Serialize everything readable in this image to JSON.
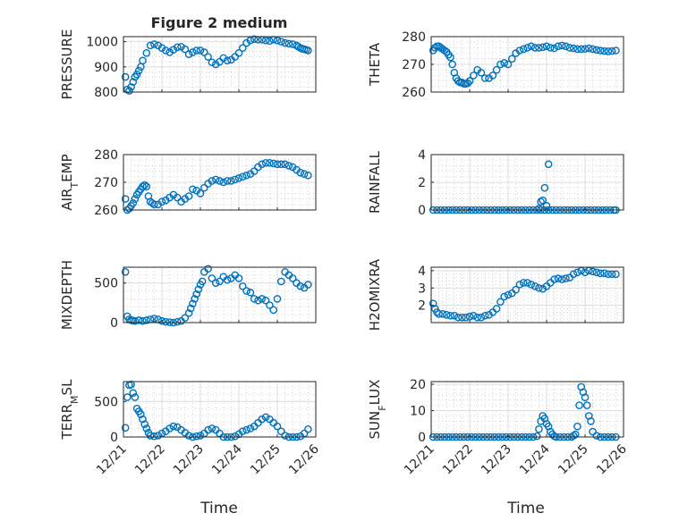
{
  "figure": {
    "title": "Figure 2 medium",
    "marker_color": "#0072BD",
    "x_ticks": [
      "12/21",
      "12/22",
      "12/23",
      "12/24",
      "12/25",
      "12/26"
    ],
    "x_label": "Time"
  },
  "chart_data": [
    {
      "type": "scatter",
      "ylabel": "PRESSURE",
      "ylim": [
        800,
        1020
      ],
      "yticks": [
        800,
        900,
        1000
      ],
      "xlim": [
        0,
        5
      ],
      "grid": true,
      "x": [
        0.05,
        0.1,
        0.15,
        0.2,
        0.25,
        0.3,
        0.35,
        0.4,
        0.45,
        0.5,
        0.6,
        0.7,
        0.8,
        0.9,
        1.0,
        1.1,
        1.2,
        1.3,
        1.4,
        1.5,
        1.6,
        1.7,
        1.8,
        1.9,
        2.0,
        2.1,
        2.2,
        2.3,
        2.4,
        2.5,
        2.6,
        2.7,
        2.8,
        2.9,
        3.0,
        3.1,
        3.2,
        3.3,
        3.4,
        3.5,
        3.6,
        3.7,
        3.8,
        3.9,
        4.0,
        4.1,
        4.2,
        4.3,
        4.4,
        4.5,
        4.55,
        4.6,
        4.65,
        4.7,
        4.75,
        4.8
      ],
      "y": [
        860,
        810,
        805,
        820,
        840,
        860,
        870,
        885,
        900,
        925,
        955,
        985,
        990,
        985,
        975,
        965,
        958,
        968,
        978,
        980,
        970,
        950,
        958,
        965,
        965,
        958,
        940,
        918,
        910,
        920,
        935,
        925,
        928,
        940,
        955,
        975,
        995,
        1005,
        1010,
        1008,
        1008,
        1005,
        1003,
        1008,
        1005,
        1000,
        995,
        992,
        990,
        985,
        980,
        975,
        972,
        970,
        968,
        965
      ]
    },
    {
      "type": "scatter",
      "ylabel": "THETA",
      "ylim": [
        260,
        280
      ],
      "yticks": [
        260,
        270,
        280
      ],
      "xlim": [
        0,
        5
      ],
      "grid": true,
      "x": [
        0.05,
        0.1,
        0.15,
        0.2,
        0.25,
        0.3,
        0.35,
        0.4,
        0.45,
        0.5,
        0.55,
        0.6,
        0.65,
        0.7,
        0.75,
        0.8,
        0.85,
        0.9,
        0.95,
        1.0,
        1.1,
        1.2,
        1.3,
        1.4,
        1.5,
        1.6,
        1.7,
        1.8,
        1.9,
        2.0,
        2.1,
        2.2,
        2.3,
        2.4,
        2.5,
        2.6,
        2.7,
        2.8,
        2.9,
        3.0,
        3.1,
        3.2,
        3.3,
        3.4,
        3.5,
        3.6,
        3.7,
        3.8,
        3.9,
        4.0,
        4.1,
        4.2,
        4.3,
        4.4,
        4.5,
        4.6,
        4.7,
        4.8
      ],
      "y": [
        275,
        276,
        276.5,
        276.5,
        276,
        275.5,
        275,
        274.5,
        273.5,
        272.5,
        270,
        267,
        265,
        264,
        263.5,
        263.5,
        263,
        263,
        263.2,
        264,
        266,
        268,
        267,
        265,
        265,
        266,
        268,
        270,
        270.5,
        270,
        272,
        274,
        275,
        275.5,
        276,
        276.5,
        276,
        276,
        276.2,
        276.5,
        276,
        275.8,
        276.5,
        276.8,
        276.5,
        276,
        275.8,
        275.5,
        275.5,
        275.6,
        275.8,
        275.5,
        275.2,
        275,
        274.8,
        274.7,
        274.8,
        275
      ]
    },
    {
      "type": "scatter",
      "ylabel": "AIR_T_EMP",
      "ylim": [
        260,
        280
      ],
      "yticks": [
        260,
        270,
        280
      ],
      "xlim": [
        0,
        5
      ],
      "grid": true,
      "x": [
        0.05,
        0.1,
        0.15,
        0.2,
        0.25,
        0.3,
        0.35,
        0.4,
        0.45,
        0.5,
        0.55,
        0.6,
        0.65,
        0.7,
        0.75,
        0.8,
        0.9,
        1.0,
        1.1,
        1.2,
        1.3,
        1.4,
        1.5,
        1.6,
        1.7,
        1.8,
        1.9,
        2.0,
        2.1,
        2.2,
        2.3,
        2.4,
        2.5,
        2.6,
        2.7,
        2.8,
        2.9,
        3.0,
        3.1,
        3.2,
        3.3,
        3.4,
        3.5,
        3.6,
        3.7,
        3.8,
        3.9,
        4.0,
        4.1,
        4.2,
        4.3,
        4.4,
        4.5,
        4.6,
        4.7,
        4.8
      ],
      "y": [
        264,
        260,
        260.5,
        261.5,
        262.5,
        264,
        265.5,
        266.5,
        267.5,
        268.5,
        269,
        268.5,
        265,
        263,
        262.5,
        262,
        262,
        263,
        263.5,
        264.5,
        265.5,
        264.5,
        263,
        264,
        265,
        267.5,
        267,
        266,
        268,
        269.5,
        270.5,
        271,
        270.5,
        270,
        270.5,
        270.5,
        271,
        271.5,
        272,
        272.5,
        273,
        274,
        275.5,
        276.5,
        277,
        277,
        276.8,
        276.5,
        276.5,
        276.5,
        276,
        275.5,
        274.5,
        273.5,
        273,
        272.5
      ]
    },
    {
      "type": "scatter",
      "ylabel": "RAINFALL",
      "ylim": [
        0,
        4
      ],
      "yticks": [
        0,
        2,
        4
      ],
      "xlim": [
        0,
        5
      ],
      "grid": true,
      "x": [
        0.05,
        0.15,
        0.25,
        0.35,
        0.45,
        0.55,
        0.65,
        0.75,
        0.85,
        0.95,
        1.05,
        1.15,
        1.25,
        1.35,
        1.45,
        1.55,
        1.65,
        1.75,
        1.85,
        1.95,
        2.05,
        2.15,
        2.25,
        2.35,
        2.45,
        2.55,
        2.65,
        2.75,
        2.85,
        2.95,
        3.05,
        3.15,
        3.25,
        3.35,
        3.45,
        3.55,
        3.65,
        3.75,
        3.85,
        3.95,
        4.05,
        4.15,
        4.25,
        4.35,
        4.45,
        4.55,
        4.65,
        4.75,
        4.8,
        2.8,
        2.9,
        3.0,
        2.85,
        2.95,
        3.05
      ],
      "y": [
        0,
        0,
        0,
        0,
        0,
        0,
        0,
        0,
        0,
        0,
        0,
        0,
        0,
        0,
        0,
        0,
        0,
        0,
        0,
        0,
        0,
        0,
        0,
        0,
        0,
        0,
        0,
        0,
        0,
        0,
        0,
        0,
        0,
        0,
        0,
        0,
        0,
        0,
        0,
        0,
        0,
        0,
        0,
        0,
        0,
        0,
        0,
        0,
        0,
        0.1,
        0.7,
        0.3,
        0.6,
        1.6,
        3.3
      ]
    },
    {
      "type": "scatter",
      "ylabel": "MIXDEPTH",
      "ylim": [
        0,
        700
      ],
      "yticks": [
        0,
        500
      ],
      "xlim": [
        0,
        5
      ],
      "grid": true,
      "x": [
        0.05,
        0.1,
        0.15,
        0.2,
        0.25,
        0.3,
        0.4,
        0.5,
        0.6,
        0.7,
        0.8,
        0.9,
        1.0,
        1.1,
        1.2,
        1.3,
        1.4,
        1.5,
        1.6,
        1.7,
        1.75,
        1.8,
        1.85,
        1.9,
        1.95,
        2.0,
        2.05,
        2.1,
        2.2,
        2.3,
        2.4,
        2.5,
        2.6,
        2.7,
        2.8,
        2.9,
        3.0,
        3.1,
        3.2,
        3.3,
        3.4,
        3.5,
        3.6,
        3.7,
        3.8,
        3.9,
        4.0,
        4.1,
        4.2,
        4.3,
        4.4,
        4.5,
        4.6,
        4.7,
        4.8
      ],
      "y": [
        640,
        80,
        40,
        30,
        25,
        20,
        30,
        20,
        30,
        40,
        50,
        40,
        20,
        10,
        5,
        0,
        10,
        20,
        60,
        120,
        180,
        240,
        300,
        360,
        420,
        480,
        520,
        640,
        680,
        560,
        500,
        520,
        580,
        540,
        560,
        600,
        560,
        460,
        400,
        380,
        300,
        280,
        300,
        280,
        220,
        160,
        300,
        520,
        640,
        600,
        560,
        500,
        460,
        440,
        480
      ]
    },
    {
      "type": "scatter",
      "ylabel": "H2OMIXRA",
      "ylim": [
        1,
        4.2
      ],
      "yticks": [
        2,
        3,
        4
      ],
      "xlim": [
        0,
        5
      ],
      "grid": true,
      "x": [
        0.05,
        0.1,
        0.15,
        0.2,
        0.3,
        0.4,
        0.5,
        0.6,
        0.7,
        0.8,
        0.9,
        1.0,
        1.1,
        1.2,
        1.3,
        1.4,
        1.5,
        1.6,
        1.7,
        1.8,
        1.9,
        2.0,
        2.1,
        2.2,
        2.3,
        2.4,
        2.5,
        2.6,
        2.7,
        2.8,
        2.9,
        3.0,
        3.1,
        3.2,
        3.3,
        3.4,
        3.5,
        3.6,
        3.7,
        3.8,
        3.9,
        4.0,
        4.1,
        4.2,
        4.3,
        4.4,
        4.5,
        4.6,
        4.7,
        4.8
      ],
      "y": [
        2.1,
        1.8,
        1.6,
        1.5,
        1.5,
        1.45,
        1.4,
        1.4,
        1.3,
        1.3,
        1.3,
        1.35,
        1.4,
        1.3,
        1.3,
        1.4,
        1.45,
        1.6,
        1.8,
        2.2,
        2.5,
        2.6,
        2.7,
        2.9,
        3.2,
        3.3,
        3.3,
        3.2,
        3.1,
        3.0,
        2.95,
        3.1,
        3.3,
        3.5,
        3.55,
        3.5,
        3.55,
        3.6,
        3.8,
        3.9,
        4.0,
        3.9,
        4.0,
        3.95,
        3.9,
        3.85,
        3.85,
        3.8,
        3.8,
        3.8
      ]
    },
    {
      "type": "scatter",
      "ylabel": "TERR_M_SL",
      "ylim": [
        0,
        780
      ],
      "yticks": [
        0,
        500
      ],
      "xlim": [
        0,
        5
      ],
      "grid": true,
      "x": [
        0.05,
        0.1,
        0.15,
        0.2,
        0.25,
        0.3,
        0.35,
        0.4,
        0.45,
        0.5,
        0.55,
        0.6,
        0.65,
        0.7,
        0.8,
        0.9,
        1.0,
        1.1,
        1.2,
        1.3,
        1.4,
        1.5,
        1.6,
        1.7,
        1.8,
        1.9,
        2.0,
        2.1,
        2.2,
        2.3,
        2.4,
        2.5,
        2.6,
        2.7,
        2.8,
        2.9,
        3.0,
        3.1,
        3.2,
        3.3,
        3.4,
        3.5,
        3.6,
        3.7,
        3.8,
        3.9,
        4.0,
        4.1,
        4.2,
        4.3,
        4.4,
        4.5,
        4.6,
        4.7,
        4.8
      ],
      "y": [
        130,
        560,
        730,
        740,
        620,
        560,
        400,
        360,
        320,
        250,
        180,
        120,
        60,
        20,
        10,
        20,
        50,
        80,
        120,
        150,
        140,
        100,
        60,
        20,
        0,
        10,
        20,
        50,
        100,
        120,
        100,
        50,
        0,
        0,
        0,
        10,
        40,
        80,
        100,
        120,
        150,
        200,
        250,
        280,
        250,
        200,
        150,
        80,
        20,
        0,
        0,
        0,
        10,
        50,
        110
      ]
    },
    {
      "type": "scatter",
      "ylabel": "SUN_F_LUX",
      "ylim": [
        0,
        21
      ],
      "yticks": [
        0,
        10,
        20
      ],
      "xlim": [
        0,
        5
      ],
      "grid": true,
      "x": [
        0.05,
        0.15,
        0.25,
        0.35,
        0.45,
        0.55,
        0.65,
        0.75,
        0.85,
        0.95,
        1.05,
        1.15,
        1.25,
        1.35,
        1.45,
        1.55,
        1.65,
        1.75,
        1.85,
        1.95,
        2.05,
        2.15,
        2.25,
        2.35,
        2.45,
        2.55,
        2.65,
        2.75,
        2.8,
        2.85,
        2.9,
        2.95,
        3.0,
        3.05,
        3.1,
        3.15,
        3.2,
        3.25,
        3.35,
        3.45,
        3.55,
        3.65,
        3.7,
        3.75,
        3.8,
        3.85,
        3.9,
        3.95,
        4.0,
        4.05,
        4.1,
        4.15,
        4.2,
        4.3,
        4.4,
        4.5,
        4.6,
        4.7,
        4.8
      ],
      "y": [
        0,
        0,
        0,
        0,
        0,
        0,
        0,
        0,
        0,
        0,
        0,
        0,
        0,
        0,
        0,
        0,
        0,
        0,
        0,
        0,
        0,
        0,
        0,
        0,
        0,
        0,
        0,
        0.3,
        3,
        6,
        8,
        7,
        5,
        4,
        2,
        1,
        0.3,
        0,
        0,
        0,
        0,
        0,
        0.5,
        1,
        4,
        12,
        19,
        17,
        15,
        12,
        8,
        6,
        2,
        0.5,
        0,
        0,
        0,
        0,
        0
      ]
    }
  ]
}
